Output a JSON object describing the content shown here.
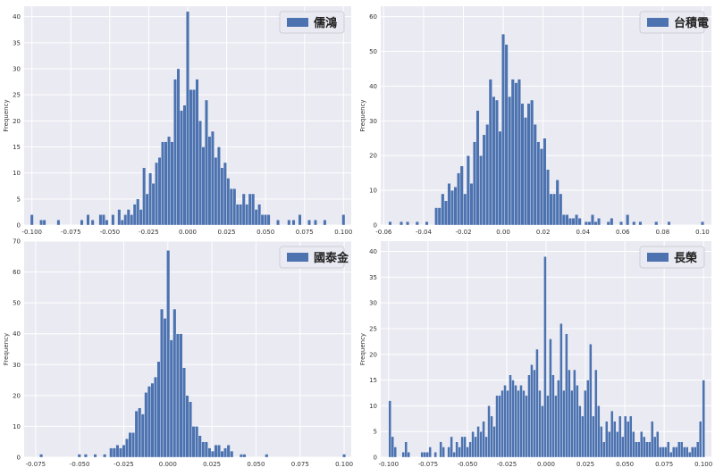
{
  "figure": {
    "y_axis_label": "Frequency"
  },
  "chart_data": [
    {
      "type": "bar",
      "subtype": "histogram",
      "legend": "儒鴻",
      "legend_position": "top-right",
      "grid": true,
      "bar_color": "#4c72b0",
      "ylabel": "Frequency",
      "xlim": [
        -0.105,
        0.105
      ],
      "ylim": [
        0,
        42
      ],
      "xticks": [
        -0.1,
        -0.075,
        -0.05,
        -0.025,
        0.0,
        0.025,
        0.05,
        0.075,
        0.1
      ],
      "xtick_labels": [
        "-0.100",
        "-0.075",
        "-0.050",
        "-0.025",
        "0.000",
        "0.025",
        "0.050",
        "0.075",
        "0.100"
      ],
      "yticks": [
        0,
        5,
        10,
        15,
        20,
        25,
        30,
        35,
        40
      ],
      "bin_width": 0.002,
      "bins": [
        [
          -0.1,
          2
        ],
        [
          -0.094,
          1
        ],
        [
          -0.092,
          1
        ],
        [
          -0.083,
          1
        ],
        [
          -0.068,
          1
        ],
        [
          -0.064,
          2
        ],
        [
          -0.061,
          1
        ],
        [
          -0.056,
          2
        ],
        [
          -0.054,
          2
        ],
        [
          -0.052,
          1
        ],
        [
          -0.048,
          2
        ],
        [
          -0.044,
          3
        ],
        [
          -0.042,
          1
        ],
        [
          -0.04,
          2
        ],
        [
          -0.038,
          3
        ],
        [
          -0.036,
          2
        ],
        [
          -0.034,
          4
        ],
        [
          -0.032,
          5
        ],
        [
          -0.03,
          3
        ],
        [
          -0.028,
          11
        ],
        [
          -0.026,
          6
        ],
        [
          -0.024,
          10
        ],
        [
          -0.022,
          8
        ],
        [
          -0.02,
          12
        ],
        [
          -0.018,
          13
        ],
        [
          -0.016,
          16
        ],
        [
          -0.014,
          16
        ],
        [
          -0.012,
          17
        ],
        [
          -0.01,
          16
        ],
        [
          -0.008,
          28
        ],
        [
          -0.006,
          30
        ],
        [
          -0.004,
          22
        ],
        [
          -0.002,
          23
        ],
        [
          0.0,
          41
        ],
        [
          0.002,
          26
        ],
        [
          0.004,
          26
        ],
        [
          0.006,
          28
        ],
        [
          0.008,
          20
        ],
        [
          0.01,
          15
        ],
        [
          0.012,
          24
        ],
        [
          0.014,
          17
        ],
        [
          0.016,
          18
        ],
        [
          0.018,
          13
        ],
        [
          0.02,
          15
        ],
        [
          0.022,
          11
        ],
        [
          0.024,
          12
        ],
        [
          0.026,
          9
        ],
        [
          0.028,
          7
        ],
        [
          0.03,
          7
        ],
        [
          0.032,
          4
        ],
        [
          0.034,
          4
        ],
        [
          0.036,
          6
        ],
        [
          0.038,
          4
        ],
        [
          0.04,
          6
        ],
        [
          0.042,
          6
        ],
        [
          0.044,
          3
        ],
        [
          0.046,
          4
        ],
        [
          0.048,
          2
        ],
        [
          0.05,
          2
        ],
        [
          0.052,
          2
        ],
        [
          0.058,
          1
        ],
        [
          0.065,
          1
        ],
        [
          0.068,
          1
        ],
        [
          0.072,
          2
        ],
        [
          0.078,
          1
        ],
        [
          0.082,
          1
        ],
        [
          0.088,
          1
        ],
        [
          0.1,
          2
        ]
      ]
    },
    {
      "type": "bar",
      "subtype": "histogram",
      "legend": "台積電",
      "legend_position": "top-right",
      "grid": true,
      "bar_color": "#4c72b0",
      "ylabel": "Frequency",
      "xlim": [
        -0.0615,
        0.1045
      ],
      "ylim": [
        0,
        63
      ],
      "xticks": [
        -0.06,
        -0.04,
        -0.02,
        0.0,
        0.02,
        0.04,
        0.06,
        0.08,
        0.1
      ],
      "xtick_labels": [
        "-0.06",
        "-0.04",
        "-0.02",
        "0.00",
        "0.02",
        "0.04",
        "0.06",
        "0.08",
        "0.10"
      ],
      "yticks": [
        0,
        10,
        20,
        30,
        40,
        50,
        60
      ],
      "bin_width": 0.0016,
      "bins": [
        [
          -0.0568,
          1
        ],
        [
          -0.0512,
          1
        ],
        [
          -0.048,
          1
        ],
        [
          -0.0432,
          1
        ],
        [
          -0.0384,
          1
        ],
        [
          -0.0336,
          5
        ],
        [
          -0.032,
          5
        ],
        [
          -0.0304,
          9
        ],
        [
          -0.0288,
          7
        ],
        [
          -0.0272,
          12
        ],
        [
          -0.0256,
          10
        ],
        [
          -0.024,
          11
        ],
        [
          -0.0224,
          15
        ],
        [
          -0.0208,
          17
        ],
        [
          -0.0192,
          9
        ],
        [
          -0.0176,
          20
        ],
        [
          -0.016,
          12
        ],
        [
          -0.0144,
          24
        ],
        [
          -0.0128,
          33
        ],
        [
          -0.0112,
          20
        ],
        [
          -0.0096,
          26
        ],
        [
          -0.008,
          29
        ],
        [
          -0.0064,
          42
        ],
        [
          -0.0048,
          37
        ],
        [
          -0.0032,
          36
        ],
        [
          -0.0016,
          27
        ],
        [
          0.0,
          55
        ],
        [
          0.0016,
          52
        ],
        [
          0.0032,
          37
        ],
        [
          0.0048,
          42
        ],
        [
          0.0064,
          41
        ],
        [
          0.008,
          42
        ],
        [
          0.0096,
          35
        ],
        [
          0.0112,
          31
        ],
        [
          0.0128,
          35
        ],
        [
          0.0144,
          36
        ],
        [
          0.016,
          29
        ],
        [
          0.0176,
          24
        ],
        [
          0.0192,
          22
        ],
        [
          0.0208,
          25
        ],
        [
          0.0224,
          16
        ],
        [
          0.024,
          9
        ],
        [
          0.0256,
          9
        ],
        [
          0.0272,
          13
        ],
        [
          0.0288,
          9
        ],
        [
          0.0304,
          3
        ],
        [
          0.032,
          3
        ],
        [
          0.0336,
          2
        ],
        [
          0.0352,
          2
        ],
        [
          0.0368,
          3
        ],
        [
          0.0384,
          2
        ],
        [
          0.0416,
          1
        ],
        [
          0.0432,
          1
        ],
        [
          0.0448,
          3
        ],
        [
          0.0464,
          1
        ],
        [
          0.048,
          2
        ],
        [
          0.0528,
          1
        ],
        [
          0.0544,
          2
        ],
        [
          0.0592,
          1
        ],
        [
          0.0624,
          3
        ],
        [
          0.0656,
          1
        ],
        [
          0.0688,
          1
        ],
        [
          0.0768,
          1
        ],
        [
          0.0832,
          1
        ],
        [
          0.1,
          1
        ]
      ]
    },
    {
      "type": "bar",
      "subtype": "histogram",
      "legend": "國泰金",
      "legend_position": "top-right",
      "grid": true,
      "bar_color": "#4c72b0",
      "ylabel": "Frequency",
      "xlim": [
        -0.0815,
        0.104
      ],
      "ylim": [
        0,
        70
      ],
      "xticks": [
        -0.075,
        -0.05,
        -0.025,
        0.0,
        0.025,
        0.05,
        0.075,
        0.1
      ],
      "xtick_labels": [
        "-0.075",
        "-0.050",
        "-0.025",
        "0.000",
        "0.025",
        "0.050",
        "0.075",
        "0.100"
      ],
      "yticks": [
        0,
        10,
        20,
        30,
        40,
        50,
        60,
        70
      ],
      "bin_width": 0.0018,
      "bins": [
        [
          -0.0718,
          1
        ],
        [
          -0.0502,
          1
        ],
        [
          -0.0466,
          1
        ],
        [
          -0.0412,
          1
        ],
        [
          -0.0358,
          1
        ],
        [
          -0.0322,
          3
        ],
        [
          -0.0304,
          3
        ],
        [
          -0.0286,
          4
        ],
        [
          -0.0268,
          3
        ],
        [
          -0.025,
          4
        ],
        [
          -0.0232,
          6
        ],
        [
          -0.0214,
          8
        ],
        [
          -0.0196,
          8
        ],
        [
          -0.0178,
          15
        ],
        [
          -0.016,
          16
        ],
        [
          -0.0142,
          14
        ],
        [
          -0.0124,
          21
        ],
        [
          -0.0106,
          23
        ],
        [
          -0.0088,
          24
        ],
        [
          -0.007,
          26
        ],
        [
          -0.0052,
          31
        ],
        [
          -0.0034,
          48
        ],
        [
          -0.0016,
          45
        ],
        [
          0.0002,
          67
        ],
        [
          0.002,
          38
        ],
        [
          0.0038,
          48
        ],
        [
          0.0056,
          40
        ],
        [
          0.0074,
          40
        ],
        [
          0.0092,
          29
        ],
        [
          0.011,
          20
        ],
        [
          0.0128,
          18
        ],
        [
          0.0146,
          10
        ],
        [
          0.0164,
          10
        ],
        [
          0.0182,
          7
        ],
        [
          0.02,
          5
        ],
        [
          0.0218,
          5
        ],
        [
          0.0236,
          3
        ],
        [
          0.0254,
          2
        ],
        [
          0.0272,
          4
        ],
        [
          0.029,
          4
        ],
        [
          0.0308,
          2
        ],
        [
          0.0326,
          3
        ],
        [
          0.0344,
          4
        ],
        [
          0.0362,
          2
        ],
        [
          0.0416,
          1
        ],
        [
          0.0434,
          1
        ],
        [
          0.056,
          1
        ],
        [
          0.1,
          1
        ]
      ]
    },
    {
      "type": "bar",
      "subtype": "histogram",
      "legend": "長榮",
      "legend_position": "top-right",
      "grid": true,
      "bar_color": "#4c72b0",
      "ylabel": "Frequency",
      "xlim": [
        -0.105,
        0.105
      ],
      "ylim": [
        0,
        42
      ],
      "xticks": [
        -0.1,
        -0.075,
        -0.05,
        -0.025,
        0.0,
        0.025,
        0.05,
        0.075,
        0.1
      ],
      "xtick_labels": [
        "-0.100",
        "-0.075",
        "-0.050",
        "-0.025",
        "0.000",
        "0.025",
        "0.050",
        "0.075",
        "0.100"
      ],
      "yticks": [
        0,
        5,
        10,
        15,
        20,
        25,
        30,
        35,
        40
      ],
      "bin_width": 0.0017,
      "bins": [
        [
          -0.0992,
          11
        ],
        [
          -0.0975,
          4
        ],
        [
          -0.0958,
          2
        ],
        [
          -0.0907,
          1
        ],
        [
          -0.089,
          3
        ],
        [
          -0.0873,
          1
        ],
        [
          -0.0788,
          1
        ],
        [
          -0.0771,
          1
        ],
        [
          -0.0754,
          1
        ],
        [
          -0.0737,
          2
        ],
        [
          -0.0703,
          1
        ],
        [
          -0.0669,
          3
        ],
        [
          -0.0652,
          2
        ],
        [
          -0.0618,
          2
        ],
        [
          -0.0601,
          4
        ],
        [
          -0.0584,
          1
        ],
        [
          -0.0567,
          3
        ],
        [
          -0.055,
          2
        ],
        [
          -0.0533,
          4
        ],
        [
          -0.0516,
          4
        ],
        [
          -0.0499,
          2
        ],
        [
          -0.0482,
          3
        ],
        [
          -0.0465,
          5
        ],
        [
          -0.0448,
          4
        ],
        [
          -0.0431,
          6
        ],
        [
          -0.0414,
          5
        ],
        [
          -0.0397,
          7
        ],
        [
          -0.038,
          4
        ],
        [
          -0.0363,
          10
        ],
        [
          -0.0346,
          8
        ],
        [
          -0.0329,
          6
        ],
        [
          -0.0312,
          12
        ],
        [
          -0.0295,
          12
        ],
        [
          -0.0278,
          13
        ],
        [
          -0.0261,
          14
        ],
        [
          -0.0244,
          13
        ],
        [
          -0.0227,
          16
        ],
        [
          -0.021,
          15
        ],
        [
          -0.0193,
          14
        ],
        [
          -0.0176,
          13
        ],
        [
          -0.0159,
          14
        ],
        [
          -0.0142,
          13
        ],
        [
          -0.0125,
          12
        ],
        [
          -0.0108,
          16
        ],
        [
          -0.0091,
          18
        ],
        [
          -0.0074,
          17
        ],
        [
          -0.0057,
          21
        ],
        [
          -0.004,
          13
        ],
        [
          -0.0023,
          10
        ],
        [
          -0.0006,
          39
        ],
        [
          0.0011,
          12
        ],
        [
          0.0028,
          23
        ],
        [
          0.0045,
          16
        ],
        [
          0.0062,
          12
        ],
        [
          0.0079,
          15
        ],
        [
          0.0096,
          26
        ],
        [
          0.0113,
          13
        ],
        [
          0.013,
          24
        ],
        [
          0.0147,
          17
        ],
        [
          0.0164,
          13
        ],
        [
          0.0181,
          17
        ],
        [
          0.0198,
          14
        ],
        [
          0.0215,
          10
        ],
        [
          0.0232,
          8
        ],
        [
          0.0249,
          13
        ],
        [
          0.0266,
          15
        ],
        [
          0.0283,
          22
        ],
        [
          0.03,
          8
        ],
        [
          0.0317,
          17
        ],
        [
          0.0334,
          10
        ],
        [
          0.0351,
          6
        ],
        [
          0.0368,
          3
        ],
        [
          0.0385,
          7
        ],
        [
          0.0402,
          5
        ],
        [
          0.0419,
          9
        ],
        [
          0.0436,
          7
        ],
        [
          0.0453,
          5
        ],
        [
          0.047,
          8
        ],
        [
          0.0487,
          4
        ],
        [
          0.0504,
          8
        ],
        [
          0.0521,
          7
        ],
        [
          0.0538,
          8
        ],
        [
          0.0555,
          5
        ],
        [
          0.0572,
          3
        ],
        [
          0.0589,
          3
        ],
        [
          0.0606,
          5
        ],
        [
          0.0623,
          4
        ],
        [
          0.064,
          3
        ],
        [
          0.0657,
          3
        ],
        [
          0.0674,
          7
        ],
        [
          0.0691,
          4
        ],
        [
          0.0708,
          5
        ],
        [
          0.0725,
          2
        ],
        [
          0.0742,
          2
        ],
        [
          0.0759,
          2
        ],
        [
          0.0776,
          3
        ],
        [
          0.0793,
          1
        ],
        [
          0.081,
          2
        ],
        [
          0.0827,
          2
        ],
        [
          0.0844,
          3
        ],
        [
          0.0861,
          3
        ],
        [
          0.0878,
          2
        ],
        [
          0.0895,
          2
        ],
        [
          0.0912,
          1
        ],
        [
          0.0929,
          2
        ],
        [
          0.0946,
          2
        ],
        [
          0.0963,
          3
        ],
        [
          0.098,
          7
        ],
        [
          0.1,
          15
        ]
      ]
    }
  ]
}
